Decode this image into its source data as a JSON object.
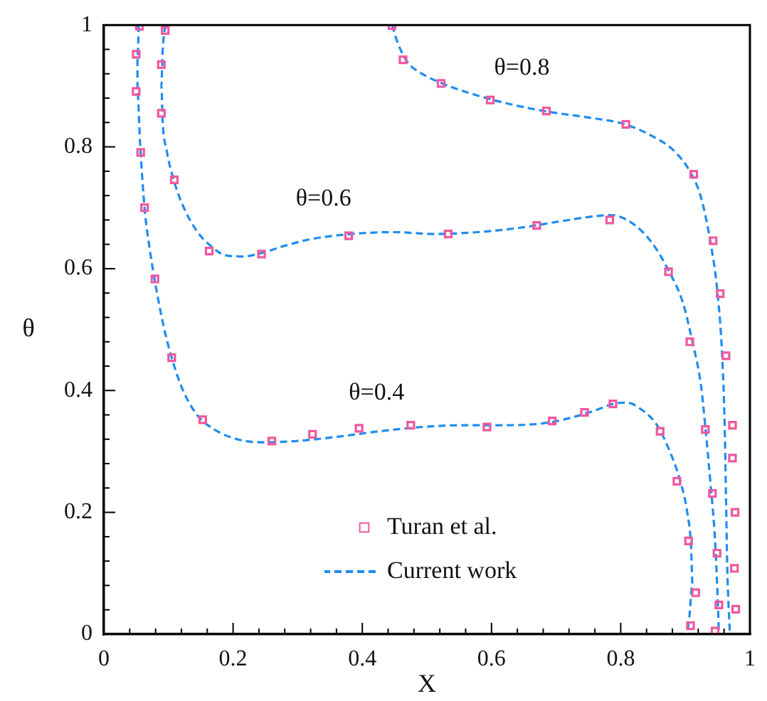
{
  "chart_data": {
    "type": "line",
    "xlabel": "X",
    "ylabel": "θ",
    "xlim": [
      0,
      1
    ],
    "ylim": [
      0,
      1
    ],
    "xticks": [
      0,
      {
        "value": 0.04,
        "label": null
      },
      {
        "value": 0.08,
        "label": null
      },
      {
        "value": 0.12,
        "label": null
      },
      {
        "value": 0.16,
        "label": null
      },
      0.2,
      {
        "value": 0.24,
        "label": null
      },
      {
        "value": 0.28,
        "label": null
      },
      {
        "value": 0.32,
        "label": null
      },
      {
        "value": 0.36,
        "label": null
      },
      0.4,
      {
        "value": 0.44,
        "label": null
      },
      {
        "value": 0.48,
        "label": null
      },
      {
        "value": 0.52,
        "label": null
      },
      {
        "value": 0.56,
        "label": null
      },
      0.6,
      {
        "value": 0.64,
        "label": null
      },
      {
        "value": 0.68,
        "label": null
      },
      {
        "value": 0.72,
        "label": null
      },
      {
        "value": 0.76,
        "label": null
      },
      0.8,
      {
        "value": 0.84,
        "label": null
      },
      {
        "value": 0.88,
        "label": null
      },
      {
        "value": 0.92,
        "label": null
      },
      {
        "value": 0.96,
        "label": null
      },
      1
    ],
    "yticks": [
      0,
      {
        "value": 0.04,
        "label": null
      },
      {
        "value": 0.08,
        "label": null
      },
      {
        "value": 0.12,
        "label": null
      },
      {
        "value": 0.16,
        "label": null
      },
      0.2,
      {
        "value": 0.24,
        "label": null
      },
      {
        "value": 0.28,
        "label": null
      },
      {
        "value": 0.32,
        "label": null
      },
      {
        "value": 0.36,
        "label": null
      },
      0.4,
      {
        "value": 0.44,
        "label": null
      },
      {
        "value": 0.48,
        "label": null
      },
      {
        "value": 0.52,
        "label": null
      },
      {
        "value": 0.56,
        "label": null
      },
      0.6,
      {
        "value": 0.64,
        "label": null
      },
      {
        "value": 0.68,
        "label": null
      },
      {
        "value": 0.72,
        "label": null
      },
      {
        "value": 0.76,
        "label": null
      },
      0.8,
      {
        "value": 0.84,
        "label": null
      },
      {
        "value": 0.88,
        "label": null
      },
      {
        "value": 0.92,
        "label": null
      },
      {
        "value": 0.96,
        "label": null
      },
      1
    ],
    "legend": "bottom",
    "line_style": "dashed",
    "series": [
      {
        "name": "Turan et al.",
        "type": "scatter",
        "marker": "square",
        "color": "#f0589e",
        "x": [
          0.055,
          0.05,
          0.05,
          0.057,
          0.063,
          0.079,
          0.105,
          0.153,
          0.26,
          0.323,
          0.395,
          0.475,
          0.593,
          0.694,
          0.744,
          0.788,
          0.861,
          0.887,
          0.905,
          0.916,
          0.908,
          0.095,
          0.089,
          0.089,
          0.109,
          0.163,
          0.244,
          0.379,
          0.533,
          0.67,
          0.783,
          0.874,
          0.907,
          0.931,
          0.942,
          0.949,
          0.952,
          0.946,
          0.446,
          0.463,
          0.522,
          0.598,
          0.685,
          0.808,
          0.913,
          0.943,
          0.954,
          0.963,
          0.973,
          0.973,
          0.977,
          0.976,
          0.978
        ],
        "values": [
          0.998,
          0.952,
          0.891,
          0.791,
          0.7,
          0.583,
          0.454,
          0.352,
          0.317,
          0.328,
          0.338,
          0.343,
          0.34,
          0.35,
          0.364,
          0.378,
          0.333,
          0.251,
          0.153,
          0.068,
          0.014,
          0.991,
          0.935,
          0.855,
          0.746,
          0.629,
          0.624,
          0.654,
          0.657,
          0.671,
          0.68,
          0.595,
          0.48,
          0.336,
          0.231,
          0.133,
          0.048,
          0.005,
          0.999,
          0.943,
          0.904,
          0.877,
          0.859,
          0.837,
          0.755,
          0.646,
          0.559,
          0.457,
          0.343,
          0.289,
          0.2,
          0.108,
          0.041
        ]
      },
      {
        "name": "Current work",
        "type": "line",
        "color": "#1f8cf0",
        "x": [
          0.054,
          0.052,
          0.052,
          0.056,
          0.063,
          0.071,
          0.08,
          0.093,
          0.106,
          0.123,
          0.145,
          0.171,
          0.21,
          0.253,
          0.297,
          0.361,
          0.426,
          0.491,
          0.556,
          0.621,
          0.686,
          0.729,
          0.762,
          0.788,
          0.81,
          0.833,
          0.855,
          0.874,
          0.892,
          0.903,
          0.909,
          0.911,
          0.907,
          0.903
        ],
        "values": [
          1,
          0.946,
          0.89,
          0.807,
          0.699,
          0.632,
          0.573,
          0.503,
          0.45,
          0.399,
          0.359,
          0.336,
          0.319,
          0.315,
          0.317,
          0.324,
          0.333,
          0.34,
          0.343,
          0.343,
          0.347,
          0.357,
          0.368,
          0.378,
          0.38,
          0.368,
          0.345,
          0.305,
          0.252,
          0.2,
          0.142,
          0.084,
          0.037,
          0
        ]
      },
      {
        "type": "line",
        "color": "#1f8cf0",
        "x": [
          0.095,
          0.091,
          0.089,
          0.091,
          0.097,
          0.108,
          0.123,
          0.145,
          0.167,
          0.188,
          0.214,
          0.242,
          0.275,
          0.318,
          0.383,
          0.448,
          0.513,
          0.578,
          0.643,
          0.708,
          0.751,
          0.784,
          0.816,
          0.848,
          0.874,
          0.896,
          0.911,
          0.924,
          0.931,
          0.939,
          0.946,
          0.95,
          0.952
        ],
        "values": [
          1,
          0.958,
          0.9,
          0.841,
          0.795,
          0.746,
          0.702,
          0.66,
          0.636,
          0.622,
          0.62,
          0.625,
          0.636,
          0.648,
          0.657,
          0.66,
          0.657,
          0.66,
          0.667,
          0.678,
          0.685,
          0.688,
          0.676,
          0.643,
          0.597,
          0.545,
          0.48,
          0.41,
          0.34,
          0.247,
          0.154,
          0.061,
          0
        ]
      },
      {
        "type": "line",
        "color": "#1f8cf0",
        "x": [
          0.446,
          0.455,
          0.47,
          0.491,
          0.524,
          0.567,
          0.621,
          0.686,
          0.751,
          0.807,
          0.848,
          0.881,
          0.907,
          0.924,
          0.939,
          0.95,
          0.957,
          0.961,
          0.963,
          0.965,
          0.969
        ],
        "values": [
          1,
          0.97,
          0.939,
          0.921,
          0.904,
          0.888,
          0.872,
          0.858,
          0.848,
          0.837,
          0.818,
          0.795,
          0.76,
          0.718,
          0.643,
          0.559,
          0.457,
          0.34,
          0.224,
          0.107,
          0
        ]
      }
    ],
    "annotations": [
      {
        "text": "θ=0.8",
        "x": 0.647,
        "y": 0.866
      },
      {
        "text": "θ=0.6",
        "x": 0.34,
        "y": 0.651
      },
      {
        "text": "θ=0.4",
        "x": 0.422,
        "y": 0.333
      }
    ]
  }
}
